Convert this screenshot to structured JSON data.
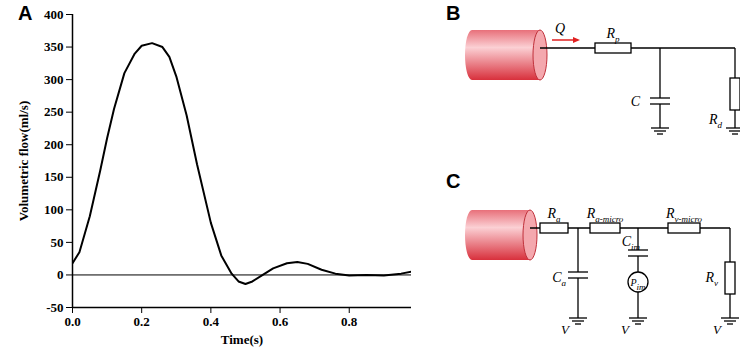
{
  "chart_data": {
    "type": "line",
    "x_label": "Time(s)",
    "y_label": "Volumetric flow(ml/s)",
    "x": [
      0,
      0.02,
      0.05,
      0.08,
      0.1,
      0.12,
      0.15,
      0.18,
      0.2,
      0.23,
      0.26,
      0.28,
      0.3,
      0.33,
      0.36,
      0.4,
      0.43,
      0.46,
      0.48,
      0.5,
      0.52,
      0.55,
      0.58,
      0.62,
      0.65,
      0.68,
      0.72,
      0.76,
      0.8,
      0.85,
      0.9,
      0.95,
      0.98
    ],
    "series": [
      {
        "color": "#000000",
        "values": [
          18,
          35,
          90,
          160,
          210,
          255,
          310,
          340,
          352,
          356,
          350,
          335,
          305,
          245,
          170,
          80,
          30,
          2,
          -10,
          -14,
          -10,
          0,
          10,
          18,
          20,
          17,
          8,
          2,
          -1,
          0,
          -1,
          2,
          5
        ]
      }
    ],
    "xlim": [
      0,
      0.98
    ],
    "xticks": [
      {
        "value": 0,
        "label": "0.0"
      },
      {
        "value": 0.2,
        "label": "0.2"
      },
      {
        "value": 0.4,
        "label": "0.4"
      },
      {
        "value": 0.6,
        "label": "0.6"
      },
      {
        "value": 0.8,
        "label": "0.8"
      }
    ],
    "ylim": [
      -50,
      400
    ],
    "yticks": [
      -50,
      0,
      50,
      100,
      150,
      200,
      250,
      300,
      350,
      400
    ],
    "grid": false
  },
  "panels": [
    "A",
    "B",
    "C"
  ],
  "diagram_B": {
    "flow": [
      "Q"
    ],
    "components": [
      [
        "R",
        "p"
      ],
      [
        "C"
      ],
      [
        "R",
        "d"
      ]
    ]
  },
  "diagram_C": {
    "components": [
      [
        "R",
        "a"
      ],
      [
        "C",
        "a"
      ],
      [
        "R",
        "a-micro"
      ],
      [
        "C",
        "im"
      ],
      [
        "P",
        "im"
      ],
      [
        "R",
        "v-micro"
      ],
      [
        "R",
        "v"
      ]
    ],
    "ground": "V"
  }
}
